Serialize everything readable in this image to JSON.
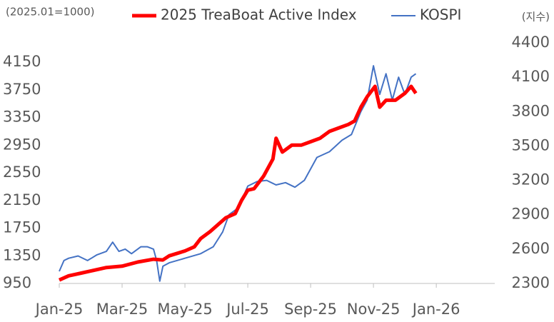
{
  "chart_data": {
    "type": "line",
    "y_label": "(2025.01=1000)",
    "y2_label": "(지수)",
    "xlim": [
      0,
      13.86
    ],
    "xticks": [
      {
        "value": 0,
        "label": "Jan-25"
      },
      {
        "value": 2,
        "label": "Mar-25"
      },
      {
        "value": 4,
        "label": "May-25"
      },
      {
        "value": 6,
        "label": "Jul-25"
      },
      {
        "value": 8,
        "label": "Sep-25"
      },
      {
        "value": 10,
        "label": "Nov-25"
      },
      {
        "value": 12,
        "label": "Jan-26"
      }
    ],
    "ylim": [
      950,
      4430
    ],
    "yticks": [
      950,
      1350,
      1750,
      2150,
      2550,
      2950,
      3350,
      3750,
      4150
    ],
    "y2lim": [
      2300,
      4400
    ],
    "y2ticks": [
      2300,
      2600,
      2900,
      3200,
      3500,
      3800,
      4100,
      4400
    ],
    "series": [
      {
        "name": "2025 TreaBoat Active Index",
        "color": "#ff0000",
        "width": 5,
        "x": [
          0,
          0.3,
          0.7,
          1,
          1.5,
          2,
          2.5,
          3,
          3.3,
          3.5,
          4,
          4.3,
          4.5,
          4.8,
          5,
          5.3,
          5.6,
          5.8,
          6,
          6.2,
          6.5,
          6.8,
          6.9,
          7.1,
          7.4,
          7.7,
          8,
          8.3,
          8.6,
          8.9,
          9.2,
          9.4,
          9.6,
          9.8,
          10.05,
          10.2,
          10.4,
          10.7,
          11,
          11.2,
          11.35
        ],
        "values": [
          1000,
          1060,
          1100,
          1130,
          1180,
          1200,
          1260,
          1300,
          1290,
          1350,
          1420,
          1480,
          1600,
          1700,
          1780,
          1900,
          1960,
          2150,
          2300,
          2320,
          2500,
          2750,
          3050,
          2850,
          2950,
          2950,
          3000,
          3050,
          3150,
          3200,
          3250,
          3300,
          3500,
          3650,
          3800,
          3500,
          3600,
          3600,
          3700,
          3800,
          3700
        ]
      },
      {
        "name": "KOSPI",
        "color": "#4472c4",
        "width": 2,
        "axis": "y2",
        "x": [
          0,
          0.15,
          0.3,
          0.6,
          0.9,
          1.2,
          1.5,
          1.7,
          1.9,
          2.1,
          2.3,
          2.6,
          2.8,
          3,
          3.1,
          3.2,
          3.3,
          3.5,
          4,
          4.5,
          4.9,
          5.2,
          5.4,
          5.7,
          6,
          6.3,
          6.6,
          6.9,
          7.2,
          7.5,
          7.8,
          8.2,
          8.6,
          9,
          9.3,
          9.6,
          9.8,
          10,
          10.2,
          10.4,
          10.6,
          10.8,
          11,
          11.2,
          11.35
        ],
        "values": [
          2406,
          2500,
          2520,
          2540,
          2500,
          2550,
          2580,
          2660,
          2580,
          2600,
          2560,
          2620,
          2620,
          2600,
          2500,
          2320,
          2450,
          2480,
          2520,
          2560,
          2620,
          2750,
          2900,
          2960,
          3150,
          3190,
          3200,
          3160,
          3180,
          3140,
          3200,
          3400,
          3450,
          3550,
          3600,
          3800,
          3900,
          4200,
          3950,
          4130,
          3900,
          4100,
          3950,
          4100,
          4130
        ]
      }
    ]
  }
}
